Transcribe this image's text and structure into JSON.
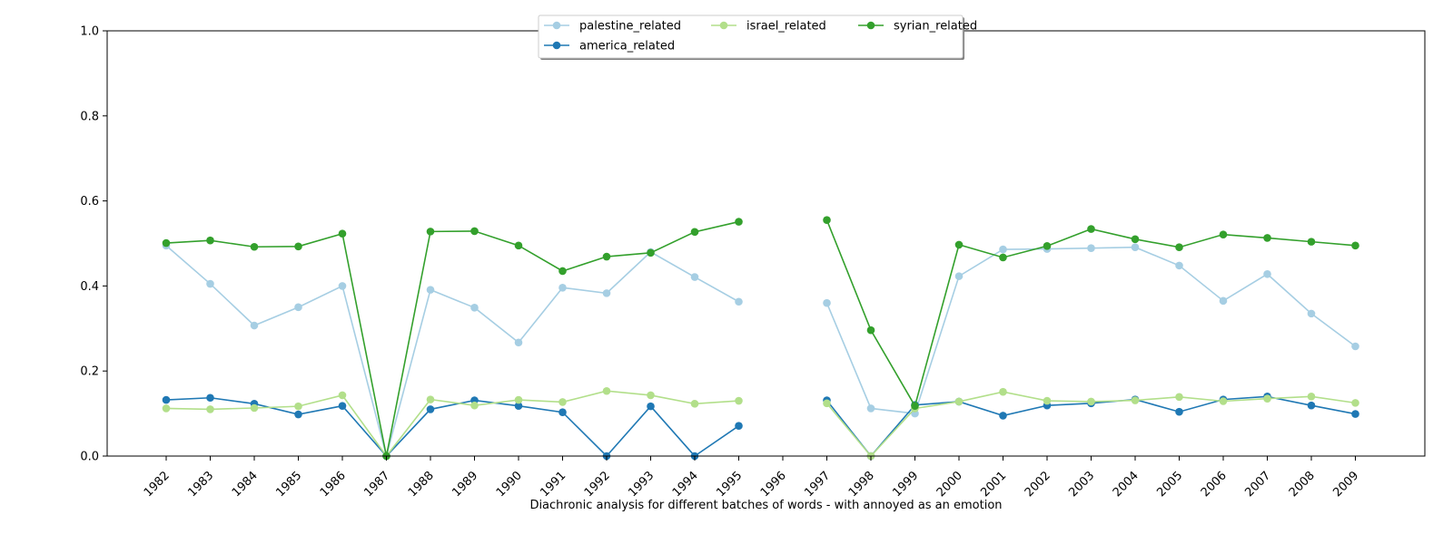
{
  "chart_data": {
    "type": "line",
    "title": "",
    "xlabel": "Diachronic analysis for different batches of words - with annoyed as an emotion",
    "ylabel": "",
    "ylim": [
      0,
      1.0
    ],
    "yticks": [
      "0.0",
      "0.2",
      "0.4",
      "0.6",
      "0.8",
      "1.0"
    ],
    "grid": false,
    "legend_position": "top-center",
    "categories": [
      "1982",
      "1983",
      "1984",
      "1985",
      "1986",
      "1987",
      "1988",
      "1989",
      "1990",
      "1991",
      "1992",
      "1993",
      "1994",
      "1995",
      "1996",
      "1997",
      "1998",
      "1999",
      "2000",
      "2001",
      "2002",
      "2003",
      "2004",
      "2005",
      "2006",
      "2007",
      "2008",
      "2009"
    ],
    "series": [
      {
        "name": "palestine_related",
        "color": "#a6cee3",
        "values": [
          0.495,
          0.405,
          0.307,
          0.35,
          0.4,
          0.0,
          0.391,
          0.349,
          0.267,
          0.396,
          0.383,
          0.48,
          0.421,
          0.363,
          null,
          0.36,
          0.112,
          0.1,
          0.423,
          0.486,
          0.487,
          0.489,
          0.491,
          0.448,
          0.365,
          0.428,
          0.335,
          0.258
        ]
      },
      {
        "name": "america_related",
        "color": "#1f78b4",
        "values": [
          0.132,
          0.137,
          0.123,
          0.098,
          0.118,
          0.0,
          0.11,
          0.131,
          0.118,
          0.103,
          0.0,
          0.117,
          0.0,
          0.071,
          null,
          0.131,
          0.0,
          0.12,
          0.128,
          0.095,
          0.119,
          0.124,
          0.133,
          0.104,
          0.133,
          0.14,
          0.119,
          0.099
        ]
      },
      {
        "name": "israel_related",
        "color": "#b2df8a",
        "values": [
          0.112,
          0.11,
          0.113,
          0.117,
          0.143,
          0.0,
          0.133,
          0.119,
          0.132,
          0.127,
          0.153,
          0.143,
          0.123,
          0.13,
          null,
          0.124,
          0.0,
          0.112,
          0.128,
          0.151,
          0.13,
          0.128,
          0.131,
          0.139,
          0.129,
          0.135,
          0.14,
          0.125
        ]
      },
      {
        "name": "syrian_related",
        "color": "#33a02c",
        "values": [
          0.501,
          0.507,
          0.492,
          0.493,
          0.523,
          0.0,
          0.528,
          0.529,
          0.495,
          0.435,
          0.469,
          0.478,
          0.527,
          0.551,
          null,
          0.555,
          0.296,
          0.118,
          0.497,
          0.467,
          0.494,
          0.534,
          0.51,
          0.491,
          0.521,
          0.513,
          0.504,
          0.495
        ]
      }
    ]
  }
}
